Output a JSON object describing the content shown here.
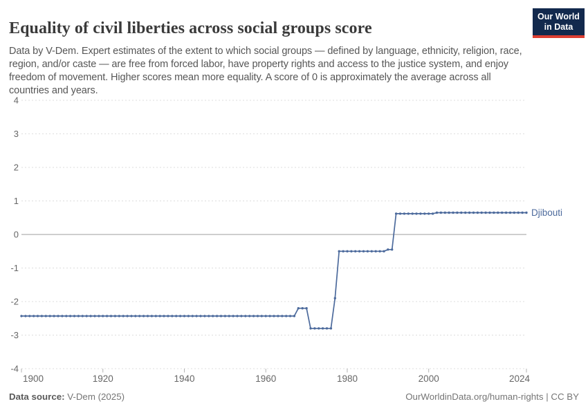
{
  "header": {
    "title": "Equality of civil liberties across social groups score",
    "subtitle": "Data by V-Dem. Expert estimates of the extent to which social groups — defined by language, ethnicity, religion, race, region, and/or caste — are free from forced labor, have property rights and access to the justice system, and enjoy freedom of movement. Higher scores mean more equality. A score of 0 is approximately the average across all countries and years.",
    "logo": {
      "line1": "Our World",
      "line2": "in Data"
    }
  },
  "chart_data": {
    "type": "line",
    "title": "Equality of civil liberties across social groups score",
    "xlabel": "",
    "ylabel": "",
    "x_range": [
      1900,
      2025
    ],
    "ylim": [
      -4,
      4
    ],
    "xticks": [
      1900,
      1920,
      1940,
      1960,
      1980,
      2000,
      2024
    ],
    "yticks": [
      4,
      3,
      2,
      1,
      0,
      -1,
      -2,
      -3,
      -4
    ],
    "grid": "horizontal dashed gridlines, solid line at zero",
    "legend_position": "label at end of line",
    "series": [
      {
        "name": "Djibouti",
        "color": "#4c6a9c",
        "annual_points": true,
        "segments": [
          {
            "from": 1900,
            "to": 1967,
            "value": -2.43
          },
          {
            "from": 1968,
            "to": 1970,
            "value": -2.2
          },
          {
            "from": 1971,
            "to": 1976,
            "value": -2.8
          },
          {
            "from": 1977,
            "to": 1977,
            "value": -1.9
          },
          {
            "from": 1978,
            "to": 1989,
            "value": -0.5
          },
          {
            "from": 1990,
            "to": 1991,
            "value": -0.45
          },
          {
            "from": 1992,
            "to": 2001,
            "value": 0.62
          },
          {
            "from": 2002,
            "to": 2024,
            "value": 0.65
          }
        ]
      }
    ]
  },
  "colors": {
    "accent_line": "#4c6a9c",
    "gridline": "#dddddd",
    "zero_line": "#9e9e9e",
    "tick_text": "#666666",
    "axis_tick": "#b3b3b3",
    "logo_bg": "#12294d",
    "logo_stripe": "#dc3e32"
  },
  "footer": {
    "source_label": "Data source:",
    "source_value": " V-Dem (2025)",
    "credit": "OurWorldinData.org/human-rights | CC BY"
  }
}
